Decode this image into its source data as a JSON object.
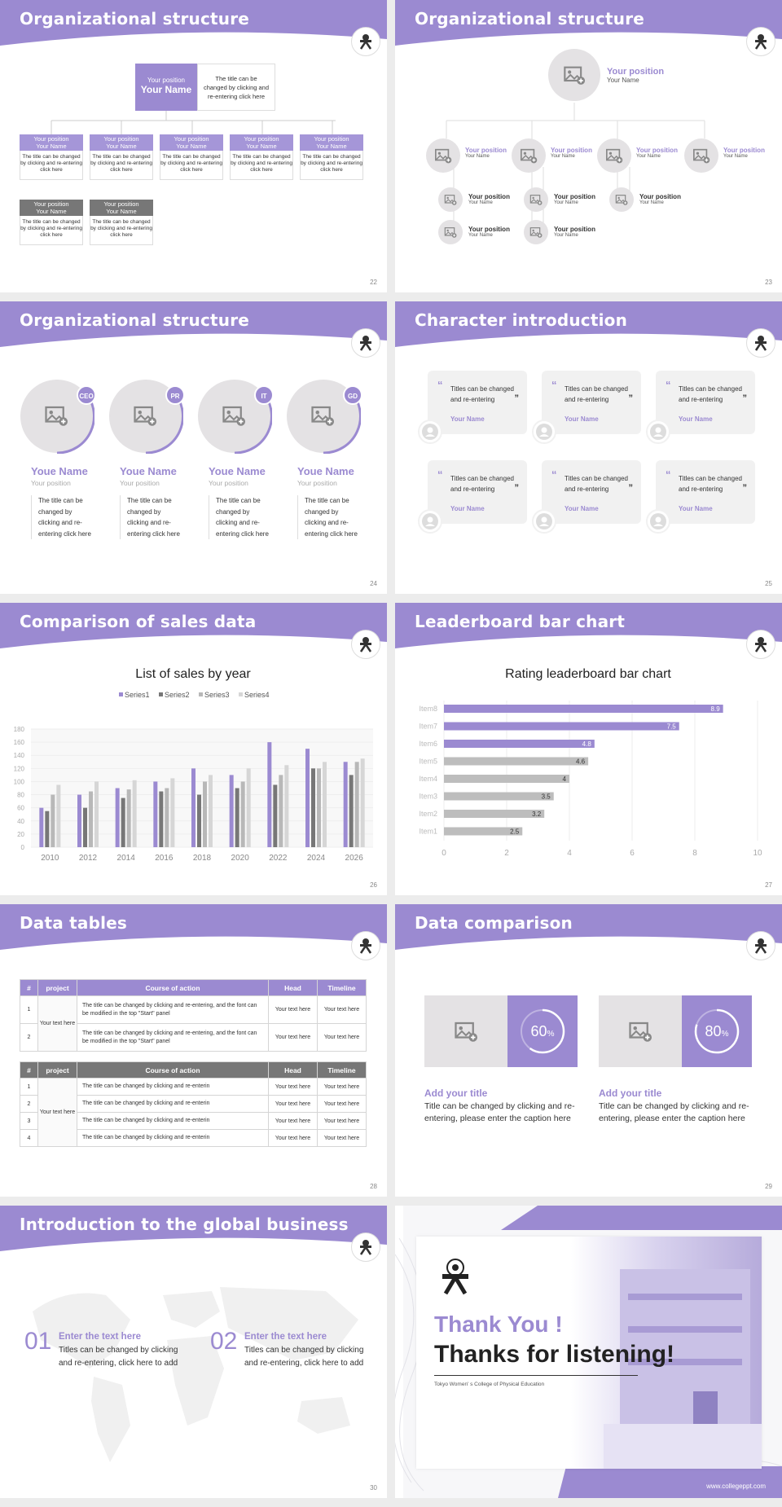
{
  "slides": {
    "s22": {
      "title": "Organizational structure",
      "page": "22",
      "top": {
        "position": "Your position",
        "name": "Your Name",
        "desc": "The title can be changed by clicking and re-entering click here"
      },
      "row_position": "Your position",
      "row_name": "Your Name",
      "row_desc": "The title can be changed by clicking and re-entering click here"
    },
    "s23": {
      "title": "Organizational structure",
      "page": "23",
      "position": "Your position",
      "name": "Your Name"
    },
    "s24": {
      "title": "Organizational structure",
      "page": "24",
      "people": [
        {
          "badge": "CEO",
          "name": "Youe Name",
          "position": "Your position",
          "desc": "The title can be changed by clicking and re-entering click here"
        },
        {
          "badge": "PR",
          "name": "Youe Name",
          "position": "Your position",
          "desc": "The title can be changed by clicking and re-entering click here"
        },
        {
          "badge": "IT",
          "name": "Youe Name",
          "position": "Your position",
          "desc": "The title can be changed by clicking and re-entering click here"
        },
        {
          "badge": "GD",
          "name": "Youe Name",
          "position": "Your position",
          "desc": "The title can be changed by clicking and re-entering click here"
        }
      ]
    },
    "s25": {
      "title": "Character introduction",
      "page": "25",
      "card_text": "Titles can be changed and re-entering",
      "card_name": "Your Name",
      "open_quote": "“",
      "close_quote": "”"
    },
    "s26": {
      "title": "Comparison of sales data",
      "page": "26"
    },
    "s27": {
      "title": "Leaderboard bar chart",
      "page": "27"
    },
    "s28": {
      "title": "Data tables",
      "page": "28",
      "headers": [
        "#",
        "project",
        "Course of action",
        "Head",
        "Timeline"
      ],
      "t1": {
        "group": "Your text here",
        "rows": [
          {
            "n": "1",
            "course": "The title can be changed by clicking and re-entering, and the font can be modified in the top \"Start\" panel",
            "head": "Your text here",
            "time": "Your text here"
          },
          {
            "n": "2",
            "course": "The title can be changed by clicking and re-entering, and the font can be modified in the top \"Start\" panel",
            "head": "Your text here",
            "time": "Your text here"
          }
        ]
      },
      "t2": {
        "group": "Your text here",
        "rows": [
          {
            "n": "1",
            "course": "The title can be changed by clicking and re-enterin",
            "head": "Your text here",
            "time": "Your text here"
          },
          {
            "n": "2",
            "course": "The title can be changed by clicking and re-enterin",
            "head": "Your text here",
            "time": "Your text here"
          },
          {
            "n": "3",
            "course": "The title can be changed by clicking and re-enterin",
            "head": "Your text here",
            "time": "Your text here"
          },
          {
            "n": "4",
            "course": "The title can be changed by clicking and re-enterin",
            "head": "Your text here",
            "time": "Your text here"
          }
        ]
      }
    },
    "s29": {
      "title": "Data comparison",
      "page": "29",
      "items": [
        {
          "value": 60,
          "label": "60",
          "unit": "%",
          "title": "Add your title",
          "desc": "Title can be changed by clicking and re-entering, please enter the caption here"
        },
        {
          "value": 80,
          "label": "80",
          "unit": "%",
          "title": "Add your title",
          "desc": "Title can be changed by clicking and re-entering, please enter the caption here"
        }
      ]
    },
    "s30": {
      "title": "Introduction to the global business",
      "page": "30",
      "items": [
        {
          "num": "01",
          "head": "Enter the text here",
          "desc": "Titles can be changed by clicking and re-entering, click here to add"
        },
        {
          "num": "02",
          "head": "Enter the text here",
          "desc": "Titles can be changed by clicking and re-entering, click here to add"
        }
      ]
    },
    "s31": {
      "thank": "Thank You !",
      "thanks": "Thanks for listening!",
      "college": "Tokyo Women' s College of Physical Education",
      "url": "www.collegeppt.com"
    }
  },
  "colors": {
    "accent": "#9b8ad1",
    "accent_light": "#a596d8",
    "gray": "#777777",
    "light_gray": "#e4e2e4"
  },
  "chart_data": [
    {
      "type": "bar",
      "title": "List of sales by year",
      "categories": [
        "2010",
        "2012",
        "2014",
        "2016",
        "2018",
        "2020",
        "2022",
        "2024",
        "2026"
      ],
      "series": [
        {
          "name": "Series1",
          "values": [
            60,
            80,
            90,
            100,
            120,
            110,
            160,
            150,
            130
          ]
        },
        {
          "name": "Series2",
          "values": [
            55,
            60,
            75,
            85,
            80,
            90,
            95,
            120,
            110
          ]
        },
        {
          "name": "Series3",
          "values": [
            80,
            85,
            88,
            90,
            100,
            100,
            110,
            120,
            130
          ]
        },
        {
          "name": "Series4",
          "values": [
            95,
            100,
            102,
            105,
            110,
            120,
            125,
            130,
            135
          ]
        }
      ],
      "yticks": [
        0,
        20,
        40,
        60,
        80,
        100,
        120,
        140,
        160,
        180
      ],
      "ylim": [
        0,
        180
      ],
      "legend": "top",
      "grid": true
    },
    {
      "type": "bar",
      "orientation": "horizontal",
      "title": "Rating leaderboard bar chart",
      "categories": [
        "Item8",
        "Item7",
        "Item6",
        "Item5",
        "Item4",
        "Item3",
        "Item2",
        "Item1"
      ],
      "values": [
        8.9,
        7.5,
        4.8,
        4.6,
        4,
        3.5,
        3.2,
        2.5
      ],
      "highlighted": [
        "Item8",
        "Item7",
        "Item6"
      ],
      "xticks": [
        0,
        2,
        4,
        6,
        8,
        10
      ],
      "xlim": [
        0,
        10
      ],
      "grid": true
    }
  ]
}
